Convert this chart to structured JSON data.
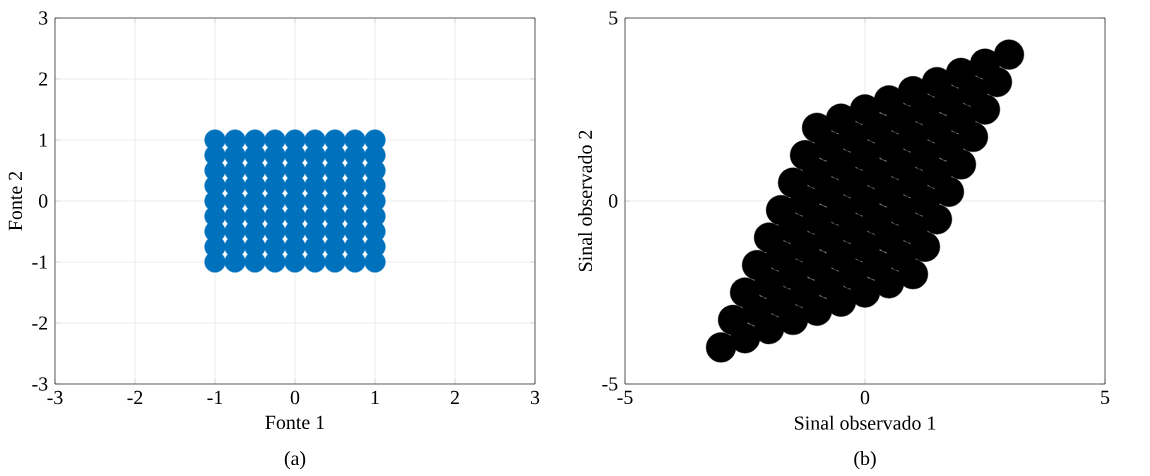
{
  "chart_data": [
    {
      "type": "scatter",
      "xlabel": "Fonte 1",
      "ylabel": "Fonte 2",
      "annotations": [
        "(a)"
      ],
      "xlim": [
        -3,
        3
      ],
      "ylim": [
        -3,
        3
      ],
      "xticks": [
        -3,
        -2,
        -1,
        0,
        1,
        2,
        3
      ],
      "yticks": [
        -3,
        -2,
        -1,
        0,
        1,
        2,
        3
      ],
      "grid": true,
      "marker": "circle",
      "series": [
        {
          "color": "#0072bd",
          "x": [
            -1,
            -1,
            -1,
            -1,
            -1,
            -1,
            -1,
            -1,
            -1,
            -0.75,
            -0.75,
            -0.75,
            -0.75,
            -0.75,
            -0.75,
            -0.75,
            -0.75,
            -0.75,
            -0.5,
            -0.5,
            -0.5,
            -0.5,
            -0.5,
            -0.5,
            -0.5,
            -0.5,
            -0.5,
            -0.25,
            -0.25,
            -0.25,
            -0.25,
            -0.25,
            -0.25,
            -0.25,
            -0.25,
            -0.25,
            0,
            0,
            0,
            0,
            0,
            0,
            0,
            0,
            0,
            0.25,
            0.25,
            0.25,
            0.25,
            0.25,
            0.25,
            0.25,
            0.25,
            0.25,
            0.5,
            0.5,
            0.5,
            0.5,
            0.5,
            0.5,
            0.5,
            0.5,
            0.5,
            0.75,
            0.75,
            0.75,
            0.75,
            0.75,
            0.75,
            0.75,
            0.75,
            0.75,
            1,
            1,
            1,
            1,
            1,
            1,
            1,
            1,
            1
          ],
          "values": [
            -1,
            -0.75,
            -0.5,
            -0.25,
            0,
            0.25,
            0.5,
            0.75,
            1,
            -1,
            -0.75,
            -0.5,
            -0.25,
            0,
            0.25,
            0.5,
            0.75,
            1,
            -1,
            -0.75,
            -0.5,
            -0.25,
            0,
            0.25,
            0.5,
            0.75,
            1,
            -1,
            -0.75,
            -0.5,
            -0.25,
            0,
            0.25,
            0.5,
            0.75,
            1,
            -1,
            -0.75,
            -0.5,
            -0.25,
            0,
            0.25,
            0.5,
            0.75,
            1,
            -1,
            -0.75,
            -0.5,
            -0.25,
            0,
            0.25,
            0.5,
            0.75,
            1,
            -1,
            -0.75,
            -0.5,
            -0.25,
            0,
            0.25,
            0.5,
            0.75,
            1,
            -1,
            -0.75,
            -0.5,
            -0.25,
            0,
            0.25,
            0.5,
            0.75,
            1,
            -1,
            -0.75,
            -0.5,
            -0.25,
            0,
            0.25,
            0.5,
            0.75,
            1
          ]
        }
      ]
    },
    {
      "type": "scatter",
      "xlabel": "Sinal observado 1",
      "ylabel": "Sinal observado 2",
      "annotations": [
        "(b)"
      ],
      "xlim": [
        -5,
        5
      ],
      "ylim": [
        -5,
        5
      ],
      "xticks": [
        -5,
        0,
        5
      ],
      "yticks": [
        -5,
        0,
        5
      ],
      "grid": true,
      "marker": "circle",
      "series": [
        {
          "color": "#000000",
          "x": [
            -3,
            -2.75,
            -2.5,
            -2.25,
            -2,
            -1.75,
            -1.5,
            -1.25,
            -1,
            -2.5,
            -2.25,
            -2,
            -1.75,
            -1.5,
            -1.25,
            -1,
            -0.75,
            -0.5,
            -2,
            -1.75,
            -1.5,
            -1.25,
            -1,
            -0.75,
            -0.5,
            -0.25,
            0,
            -1.5,
            -1.25,
            -1,
            -0.75,
            -0.5,
            -0.25,
            0,
            0.25,
            0.5,
            -1,
            -0.75,
            -0.5,
            -0.25,
            0,
            0.25,
            0.5,
            0.75,
            1,
            -0.5,
            -0.25,
            0,
            0.25,
            0.5,
            0.75,
            1,
            1.25,
            1.5,
            0,
            0.25,
            0.5,
            0.75,
            1,
            1.25,
            1.5,
            1.75,
            2,
            0.5,
            0.75,
            1,
            1.25,
            1.5,
            1.75,
            2,
            2.25,
            2.5,
            1,
            1.25,
            1.5,
            1.75,
            2,
            2.25,
            2.5,
            2.75,
            3
          ],
          "values": [
            -4,
            -3.25,
            -2.5,
            -1.75,
            -1,
            -0.25,
            0.5,
            1.25,
            2,
            -3.75,
            -3,
            -2.25,
            -1.5,
            -0.75,
            0,
            0.75,
            1.5,
            2.25,
            -3.5,
            -2.75,
            -2,
            -1.25,
            -0.5,
            0.25,
            1,
            1.75,
            2.5,
            -3.25,
            -2.5,
            -1.75,
            -1,
            -0.25,
            0.5,
            1.25,
            2,
            2.75,
            -3,
            -2.25,
            -1.5,
            -0.75,
            0,
            0.75,
            1.5,
            2.25,
            3,
            -2.75,
            -2,
            -1.25,
            -0.5,
            0.25,
            1,
            1.75,
            2.5,
            3.25,
            -2.5,
            -1.75,
            -1,
            -0.25,
            0.5,
            1.25,
            2,
            2.75,
            3.5,
            -2.25,
            -1.5,
            -0.75,
            0,
            0.75,
            1.5,
            2.25,
            3,
            3.75,
            -2,
            -1.25,
            -0.5,
            0.25,
            1,
            1.75,
            2.5,
            3.25,
            4
          ]
        }
      ]
    }
  ]
}
